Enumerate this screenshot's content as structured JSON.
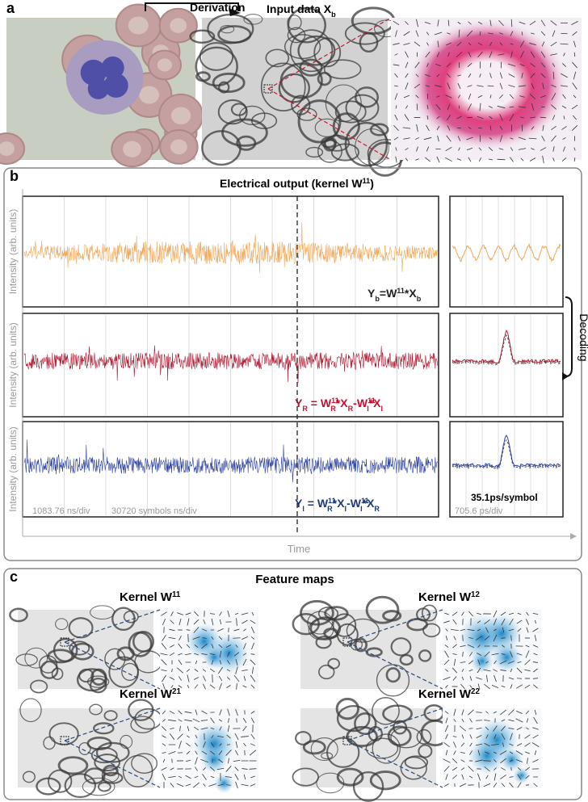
{
  "panel_a": {
    "label": "a",
    "derivation": "Derivation",
    "input_title": [
      {
        "text": "Input data X"
      },
      {
        "text": "b",
        "pos": "sub"
      }
    ]
  },
  "panel_b": {
    "label": "b",
    "title": [
      {
        "text": "Electrical output (kernel W"
      },
      {
        "text": "11",
        "pos": "sup"
      },
      {
        "text": ")"
      }
    ],
    "y_labels": [
      "Intensity (arb. units)",
      "Intensity (arb. units)",
      "Intensity (arb. units)"
    ],
    "equations": [
      [
        {
          "text": "Y"
        },
        {
          "text": "b",
          "pos": "sub"
        },
        {
          "text": "=W"
        },
        {
          "text": "11",
          "pos": "sup"
        },
        {
          "text": "*X"
        },
        {
          "text": "b",
          "pos": "sub"
        }
      ],
      [
        {
          "text": "Y"
        },
        {
          "text": "R",
          "pos": "sub"
        },
        {
          "text": " = W"
        },
        {
          "text": "11",
          "pos": "sup"
        },
        {
          "text": "R",
          "pos": "sub"
        },
        {
          "text": "*X"
        },
        {
          "text": "R",
          "pos": "sub"
        },
        {
          "text": "-W"
        },
        {
          "text": "11",
          "pos": "sup"
        },
        {
          "text": "I",
          "pos": "sub"
        },
        {
          "text": "*X"
        },
        {
          "text": "I",
          "pos": "sub"
        }
      ],
      [
        {
          "text": "Y"
        },
        {
          "text": "I",
          "pos": "sub"
        },
        {
          "text": " = W"
        },
        {
          "text": "11",
          "pos": "sup"
        },
        {
          "text": "R",
          "pos": "sub"
        },
        {
          "text": "*X"
        },
        {
          "text": "I",
          "pos": "sub"
        },
        {
          "text": "-W"
        },
        {
          "text": "11",
          "pos": "sup"
        },
        {
          "text": "I",
          "pos": "sub"
        },
        {
          "text": "*X"
        },
        {
          "text": "R",
          "pos": "sub"
        }
      ]
    ],
    "x_label": "Time",
    "decoding": "Decoding",
    "scale_labels": [
      "1083.76 ns/div",
      "30720 symbols ns/div",
      "705.6 ps/div"
    ],
    "symbol_rate": "35.1ps/symbol"
  },
  "panel_c": {
    "label": "c",
    "title": "Feature maps",
    "kernels": [
      [
        {
          "text": "Kernel W"
        },
        {
          "text": "11",
          "pos": "sup"
        }
      ],
      [
        {
          "text": "Kernel W"
        },
        {
          "text": "12",
          "pos": "sup"
        }
      ],
      [
        {
          "text": "Kernel W"
        },
        {
          "text": "21",
          "pos": "sup"
        }
      ],
      [
        {
          "text": "Kernel W"
        },
        {
          "text": "22",
          "pos": "sup"
        }
      ]
    ]
  }
}
